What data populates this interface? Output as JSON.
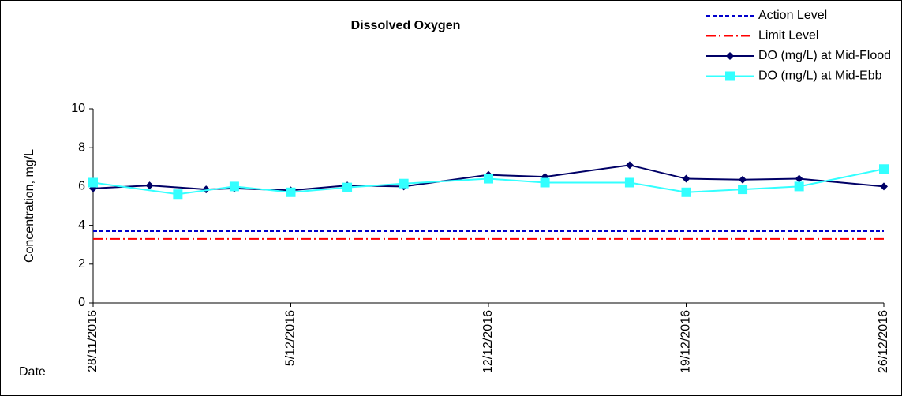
{
  "chart_data": {
    "type": "line",
    "title": "Dissolved Oxygen",
    "x_label": "Date",
    "y_label": "Concentration, mg/L",
    "ylim": [
      0,
      10
    ],
    "yticks": [
      0,
      2,
      4,
      6,
      8,
      10
    ],
    "xlim": [
      "28/11/2016",
      "26/12/2016"
    ],
    "xticks": [
      "28/11/2016",
      "5/12/2016",
      "12/12/2016",
      "19/12/2016",
      "26/12/2016"
    ],
    "reference_lines": [
      {
        "name": "Action Level",
        "value": 3.7,
        "color": "#0000cc",
        "dash": "5,3"
      },
      {
        "name": "Limit Level",
        "value": 3.3,
        "color": "#ff0000",
        "dash": "12,4,2,4"
      }
    ],
    "series": [
      {
        "name": "DO (mg/L) at Mid-Flood",
        "color": "#000066",
        "marker": "diamond",
        "x": [
          "28/11/2016",
          "30/11/2016",
          "2/12/2016",
          "3/12/2016",
          "5/12/2016",
          "7/12/2016",
          "9/12/2016",
          "12/12/2016",
          "14/12/2016",
          "17/12/2016",
          "19/12/2016",
          "21/12/2016",
          "23/12/2016",
          "26/12/2016"
        ],
        "values": [
          5.9,
          6.05,
          5.85,
          5.9,
          5.8,
          6.05,
          6.0,
          6.6,
          6.5,
          7.1,
          6.4,
          6.35,
          6.4,
          6.0
        ]
      },
      {
        "name": "DO (mg/L) at Mid-Ebb",
        "color": "#33ffff",
        "marker": "square",
        "x": [
          "28/11/2016",
          "1/12/2016",
          "3/12/2016",
          "5/12/2016",
          "7/12/2016",
          "9/12/2016",
          "12/12/2016",
          "14/12/2016",
          "17/12/2016",
          "19/12/2016",
          "21/12/2016",
          "23/12/2016",
          "26/12/2016"
        ],
        "values": [
          6.2,
          5.6,
          6.0,
          5.7,
          5.95,
          6.15,
          6.4,
          6.2,
          6.2,
          5.7,
          5.85,
          6.0,
          6.9
        ]
      }
    ]
  }
}
